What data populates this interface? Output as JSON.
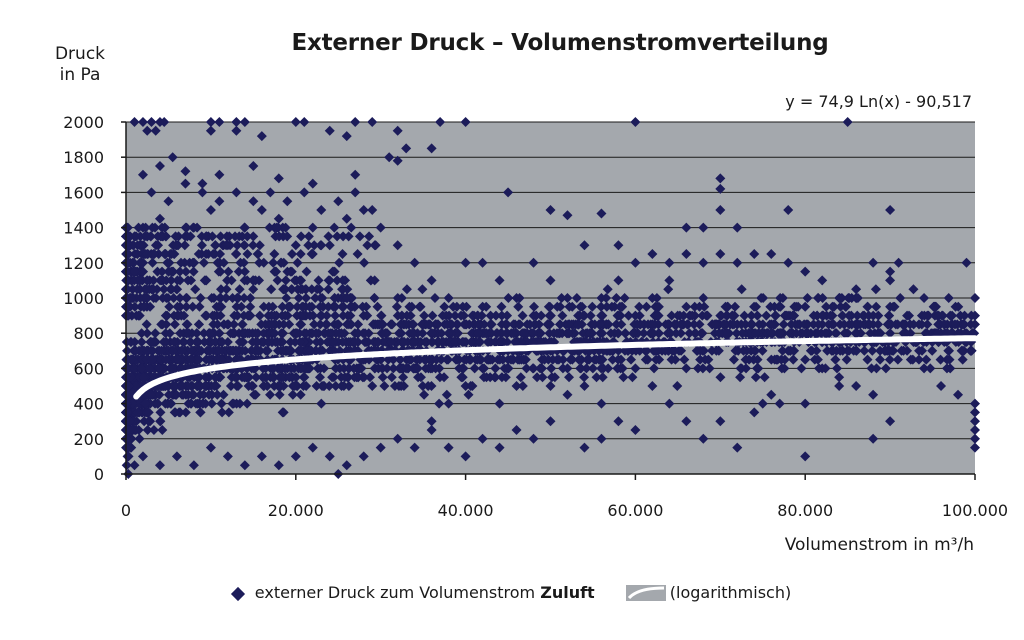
{
  "chart_data": {
    "type": "scatter",
    "title": "Externer Druck – Volumenstromverteilung",
    "ylabel_line1": "Druck",
    "ylabel_line2": "in Pa",
    "xlabel": "Volumenstrom in m³/h",
    "equation": "y = 74,9 Ln(x) - 90,517",
    "xlim": [
      0,
      100000
    ],
    "ylim": [
      0,
      2000
    ],
    "x_ticks": [
      "0",
      "20.000",
      "40.000",
      "60.000",
      "80.000",
      "100.000"
    ],
    "x_tick_values": [
      0,
      20000,
      40000,
      60000,
      80000,
      100000
    ],
    "y_ticks": [
      "0",
      "200",
      "400",
      "600",
      "800",
      "1000",
      "1200",
      "1400",
      "1600",
      "1800",
      "2000"
    ],
    "y_tick_values": [
      0,
      200,
      400,
      600,
      800,
      1000,
      1200,
      1400,
      1600,
      1800,
      2000
    ],
    "grid": "horizontal",
    "legend_position": "bottom",
    "series": [
      {
        "name": "externer Druck zum Volumenstrom Zuluft",
        "kind": "scatter",
        "color": "#1c1c5a",
        "points": [
          [
            1000,
            2000
          ],
          [
            2000,
            2000
          ],
          [
            2500,
            1950
          ],
          [
            3000,
            2000
          ],
          [
            3500,
            1950
          ],
          [
            4000,
            2000
          ],
          [
            4500,
            2000
          ],
          [
            10000,
            2000
          ],
          [
            11000,
            2000
          ],
          [
            13000,
            2000
          ],
          [
            14000,
            2000
          ],
          [
            20000,
            2000
          ],
          [
            21000,
            2000
          ],
          [
            27000,
            2000
          ],
          [
            29000,
            2000
          ],
          [
            37000,
            2000
          ],
          [
            40000,
            2000
          ],
          [
            60000,
            2000
          ],
          [
            85000,
            2000
          ],
          [
            10000,
            1950
          ],
          [
            13000,
            1950
          ],
          [
            16000,
            1920
          ],
          [
            24000,
            1950
          ],
          [
            26000,
            1920
          ],
          [
            32000,
            1950
          ],
          [
            31000,
            1800
          ],
          [
            32000,
            1780
          ],
          [
            2000,
            1700
          ],
          [
            4000,
            1750
          ],
          [
            5500,
            1800
          ],
          [
            7000,
            1720
          ],
          [
            9000,
            1650
          ],
          [
            11000,
            1700
          ],
          [
            15000,
            1750
          ],
          [
            18000,
            1680
          ],
          [
            22000,
            1650
          ],
          [
            27000,
            1700
          ],
          [
            33000,
            1850
          ],
          [
            36000,
            1850
          ],
          [
            45000,
            1600
          ],
          [
            50000,
            1500
          ],
          [
            52000,
            1470
          ],
          [
            56000,
            1480
          ],
          [
            66000,
            1400
          ],
          [
            68000,
            1400
          ],
          [
            70000,
            1680
          ],
          [
            70000,
            1620
          ],
          [
            70000,
            1500
          ],
          [
            72000,
            1400
          ],
          [
            78000,
            1500
          ],
          [
            90000,
            1500
          ],
          [
            88000,
            1200
          ],
          [
            90000,
            1150
          ],
          [
            90000,
            1100
          ],
          [
            91000,
            1200
          ],
          [
            99000,
            1200
          ],
          [
            54000,
            1300
          ],
          [
            58000,
            1300
          ],
          [
            62000,
            1250
          ],
          [
            64000,
            1200
          ],
          [
            66000,
            1250
          ],
          [
            68000,
            1200
          ],
          [
            70000,
            1250
          ],
          [
            72000,
            1200
          ],
          [
            74000,
            1250
          ],
          [
            76000,
            1250
          ],
          [
            78000,
            1200
          ],
          [
            80000,
            1150
          ],
          [
            82000,
            1100
          ],
          [
            86000,
            1050
          ],
          [
            84000,
            1000
          ],
          [
            80000,
            950
          ],
          [
            82000,
            900
          ],
          [
            85000,
            800
          ],
          [
            88000,
            850
          ],
          [
            90000,
            950
          ],
          [
            92000,
            900
          ],
          [
            94000,
            1000
          ],
          [
            96000,
            800
          ],
          [
            98000,
            800
          ],
          [
            100000,
            1000
          ],
          [
            100000,
            900
          ],
          [
            100000,
            850
          ],
          [
            60000,
            900
          ],
          [
            62000,
            800
          ],
          [
            64000,
            850
          ],
          [
            66000,
            950
          ],
          [
            68000,
            1000
          ],
          [
            70000,
            900
          ],
          [
            72000,
            850
          ],
          [
            74000,
            800
          ],
          [
            76000,
            750
          ],
          [
            78000,
            700
          ],
          [
            80000,
            650
          ],
          [
            82000,
            600
          ],
          [
            84000,
            550
          ],
          [
            86000,
            500
          ],
          [
            88000,
            450
          ],
          [
            92000,
            700
          ],
          [
            94000,
            600
          ],
          [
            96000,
            500
          ],
          [
            98000,
            450
          ],
          [
            100000,
            400
          ],
          [
            100000,
            350
          ],
          [
            100000,
            300
          ],
          [
            100000,
            250
          ],
          [
            100000,
            200
          ],
          [
            100000,
            150
          ],
          [
            99000,
            750
          ],
          [
            97000,
            650
          ],
          [
            58000,
            700
          ],
          [
            60000,
            600
          ],
          [
            62000,
            500
          ],
          [
            64000,
            400
          ],
          [
            66000,
            300
          ],
          [
            68000,
            200
          ],
          [
            70000,
            300
          ],
          [
            72000,
            150
          ],
          [
            74000,
            350
          ],
          [
            75000,
            400
          ],
          [
            76000,
            450
          ],
          [
            77000,
            400
          ],
          [
            80000,
            400
          ],
          [
            80000,
            100
          ],
          [
            84000,
            500
          ],
          [
            88000,
            200
          ],
          [
            90000,
            300
          ],
          [
            56000,
            200
          ],
          [
            54000,
            150
          ],
          [
            50000,
            300
          ],
          [
            48000,
            200
          ],
          [
            46000,
            250
          ],
          [
            44000,
            150
          ],
          [
            42000,
            200
          ],
          [
            40000,
            100
          ],
          [
            38000,
            150
          ],
          [
            36000,
            250
          ],
          [
            34000,
            150
          ],
          [
            32000,
            200
          ],
          [
            30000,
            150
          ],
          [
            28000,
            100
          ],
          [
            26000,
            50
          ],
          [
            25000,
            0
          ],
          [
            24000,
            100
          ],
          [
            22000,
            150
          ],
          [
            20000,
            100
          ],
          [
            18000,
            50
          ],
          [
            16000,
            100
          ],
          [
            14000,
            50
          ],
          [
            12000,
            100
          ],
          [
            10000,
            150
          ],
          [
            8000,
            50
          ],
          [
            6000,
            100
          ],
          [
            4000,
            50
          ],
          [
            2000,
            100
          ],
          [
            1000,
            50
          ],
          [
            500,
            150
          ],
          [
            42000,
            1200
          ],
          [
            44000,
            1100
          ],
          [
            46000,
            1000
          ],
          [
            48000,
            1200
          ],
          [
            50000,
            1100
          ],
          [
            52000,
            1000
          ],
          [
            54000,
            900
          ],
          [
            56000,
            1000
          ],
          [
            58000,
            1100
          ],
          [
            60000,
            1200
          ],
          [
            62000,
            1000
          ],
          [
            64000,
            1100
          ],
          [
            48000,
            900
          ],
          [
            46000,
            800
          ],
          [
            44000,
            700
          ],
          [
            42000,
            600
          ],
          [
            40000,
            500
          ],
          [
            38000,
            400
          ],
          [
            36000,
            300
          ],
          [
            50000,
            700
          ],
          [
            52000,
            600
          ],
          [
            54000,
            500
          ],
          [
            56000,
            400
          ],
          [
            58000,
            300
          ],
          [
            60000,
            250
          ],
          [
            44000,
            400
          ],
          [
            46000,
            500
          ],
          [
            48000,
            600
          ],
          [
            50000,
            500
          ],
          [
            52000,
            450
          ],
          [
            30000,
            1400
          ],
          [
            32000,
            1300
          ],
          [
            34000,
            1200
          ],
          [
            36000,
            1100
          ],
          [
            38000,
            1000
          ],
          [
            40000,
            1200
          ],
          [
            28000,
            1500
          ],
          [
            26000,
            1450
          ],
          [
            24000,
            1300
          ],
          [
            22000,
            1400
          ],
          [
            20000,
            1300
          ],
          [
            18000,
            1450
          ],
          [
            16000,
            1500
          ],
          [
            14000,
            1400
          ],
          [
            12000,
            1300
          ],
          [
            10000,
            1500
          ],
          [
            8000,
            1400
          ],
          [
            6000,
            1300
          ],
          [
            4000,
            1450
          ],
          [
            2000,
            1400
          ],
          [
            1000,
            1350
          ],
          [
            3000,
            1600
          ],
          [
            5000,
            1550
          ],
          [
            7000,
            1650
          ],
          [
            9000,
            1600
          ],
          [
            11000,
            1550
          ],
          [
            13000,
            1600
          ],
          [
            15000,
            1550
          ],
          [
            17000,
            1600
          ],
          [
            19000,
            1550
          ],
          [
            21000,
            1600
          ],
          [
            23000,
            1500
          ],
          [
            25000,
            1550
          ],
          [
            27000,
            1600
          ],
          [
            29000,
            1500
          ]
        ]
      },
      {
        "name": "(logarithmisch)",
        "kind": "trendline",
        "color": "#ffffff",
        "a": 74.9,
        "b": -90.517
      }
    ]
  },
  "legend": {
    "scatter_label_prefix": "externer Druck zum Volumenstrom ",
    "scatter_label_bold": "Zuluft",
    "trend_label": "(logarithmisch)"
  }
}
